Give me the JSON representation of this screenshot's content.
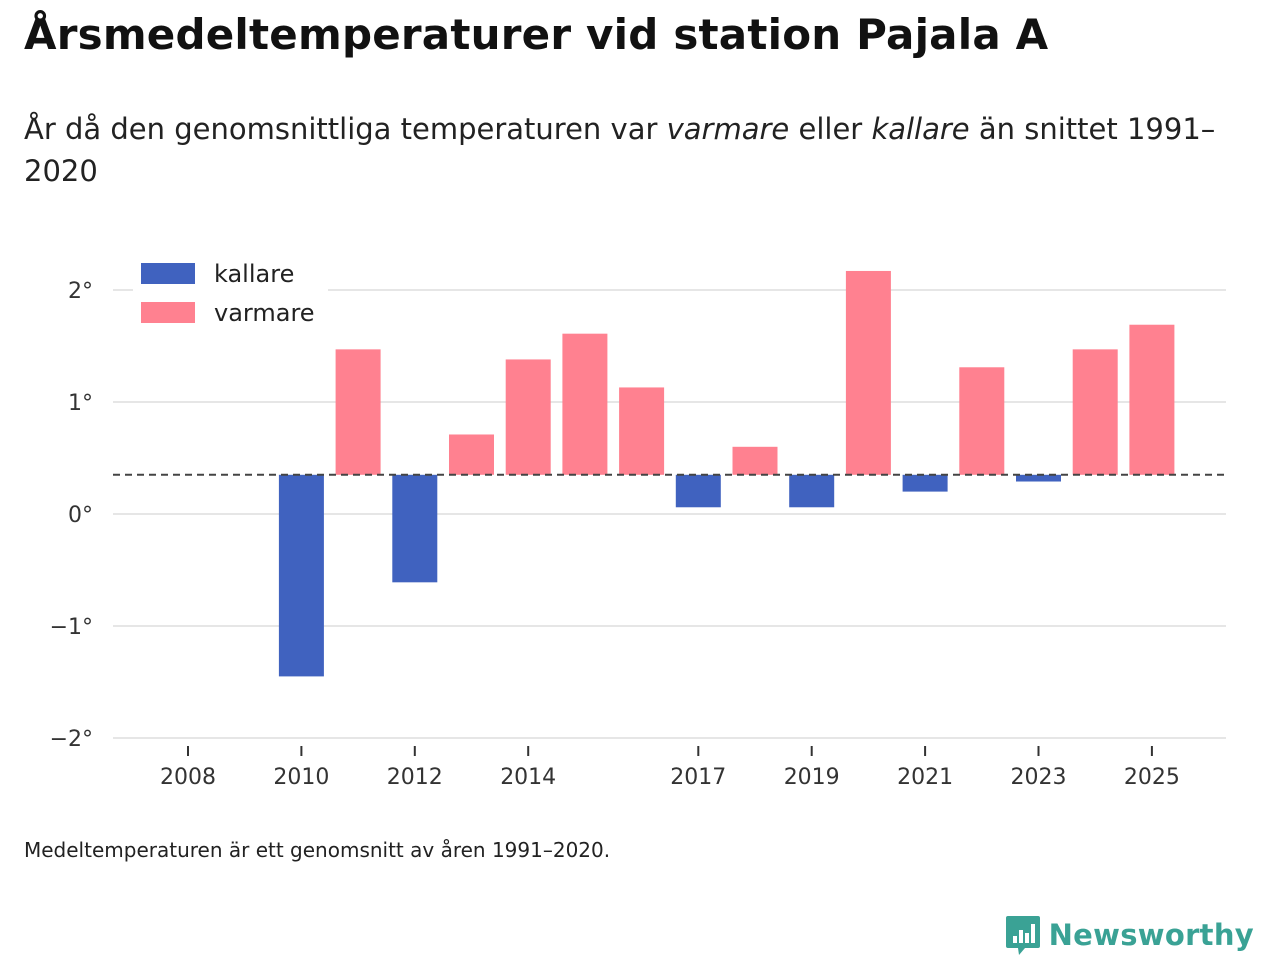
{
  "header": {
    "title": "Årsmedeltemperaturer vid station Pajala A",
    "subtitle_part1": "År då den genomsnittliga temperaturen var ",
    "subtitle_warm": "varmare",
    "subtitle_part2": " eller ",
    "subtitle_cold": "kallare",
    "subtitle_part3": " än snittet 1991–2020"
  },
  "footer": {
    "note": "Medeltemperaturen är ett genomsnitt av åren 1991–2020.",
    "brand": "Newsworthy"
  },
  "colors": {
    "cold": "#4062bf",
    "warm": "#ff8190",
    "brand": "#3aa295",
    "grid": "#dddddd",
    "reference_line": "#444444"
  },
  "chart_data": {
    "type": "bar",
    "title": "Årsmedeltemperaturer vid station Pajala A",
    "xlabel": "",
    "ylabel": "",
    "ylim": [
      -2.1,
      2.3
    ],
    "xlim": [
      2007.5,
      2026.5
    ],
    "baseline_mean": 0.35,
    "y_ticks": [
      -2,
      -1,
      0,
      1,
      2
    ],
    "y_tick_labels": [
      "−2°",
      "−1°",
      "0°",
      "1°",
      "2°"
    ],
    "x_ticks": [
      2008,
      2010,
      2012,
      2014,
      2017,
      2019,
      2021,
      2023,
      2025
    ],
    "x_tick_labels": [
      "2008",
      "2010",
      "2012",
      "2014",
      "2017",
      "2019",
      "2021",
      "2023",
      "2025"
    ],
    "legend": [
      {
        "key": "cold",
        "label": "kallare"
      },
      {
        "key": "warm",
        "label": "varmare"
      }
    ],
    "legend_position": "top-left",
    "bars": [
      {
        "year": 2010,
        "value": -1.45,
        "category": "cold"
      },
      {
        "year": 2011,
        "value": 1.47,
        "category": "warm"
      },
      {
        "year": 2012,
        "value": -0.61,
        "category": "cold"
      },
      {
        "year": 2013,
        "value": 0.71,
        "category": "warm"
      },
      {
        "year": 2014,
        "value": 1.38,
        "category": "warm"
      },
      {
        "year": 2015,
        "value": 1.61,
        "category": "warm"
      },
      {
        "year": 2016,
        "value": 1.13,
        "category": "warm"
      },
      {
        "year": 2017,
        "value": 0.06,
        "category": "cold"
      },
      {
        "year": 2018,
        "value": 0.6,
        "category": "warm"
      },
      {
        "year": 2019,
        "value": 0.06,
        "category": "cold"
      },
      {
        "year": 2020,
        "value": 2.17,
        "category": "warm"
      },
      {
        "year": 2021,
        "value": 0.2,
        "category": "cold"
      },
      {
        "year": 2022,
        "value": 1.31,
        "category": "warm"
      },
      {
        "year": 2023,
        "value": 0.29,
        "category": "cold"
      },
      {
        "year": 2024,
        "value": 1.47,
        "category": "warm"
      },
      {
        "year": 2025,
        "value": 1.69,
        "category": "warm"
      }
    ]
  }
}
